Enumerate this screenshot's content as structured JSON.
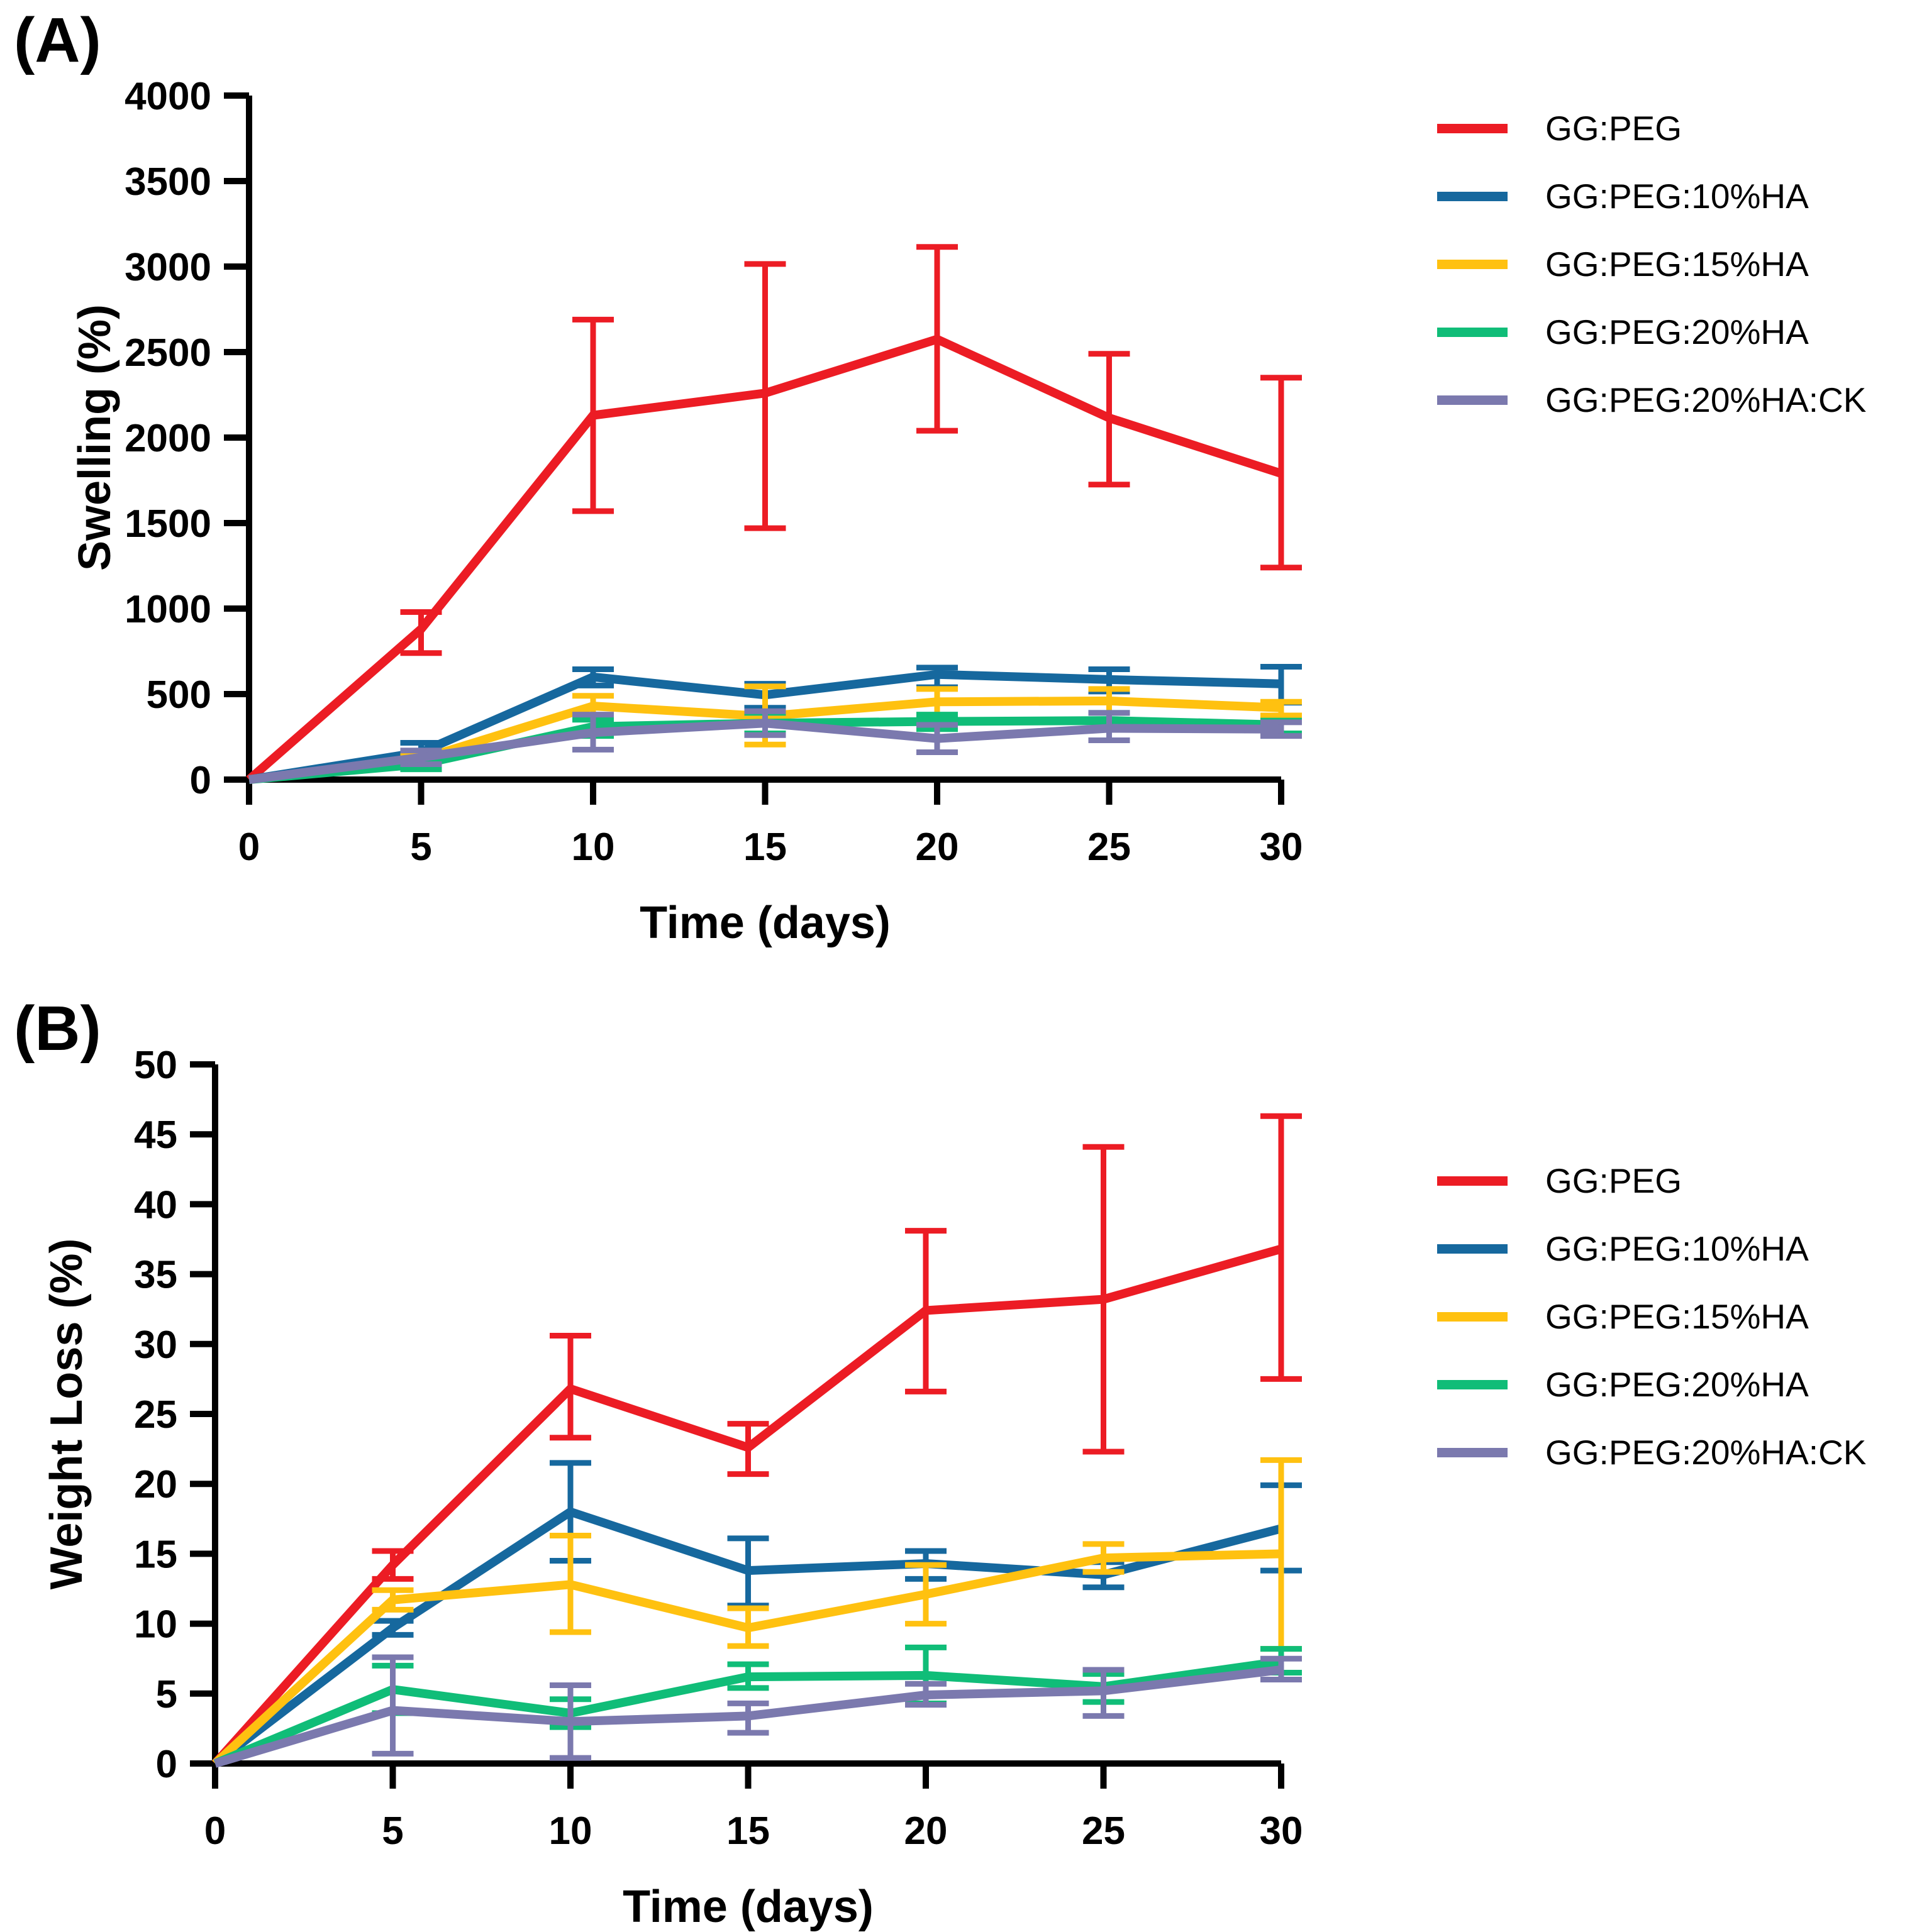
{
  "panels": [
    {
      "label": "(A)",
      "chart_data": {
        "type": "line",
        "x": [
          0,
          5,
          10,
          15,
          20,
          25,
          30
        ],
        "xlabel": "Time (days)",
        "ylabel": "Swelling (%)",
        "ylim": [
          0,
          4000
        ],
        "ytick_step": 500,
        "grid": "off",
        "legend_position": "right",
        "series": [
          {
            "name": "GG:PEG",
            "color": "#ec1c24",
            "values": [
              0,
              880,
              2130,
              2260,
              2575,
              2115,
              1790
            ],
            "err_low": [
              0,
              740,
              1570,
              1470,
              2040,
              1725,
              1240
            ],
            "err_high": [
              0,
              980,
              2690,
              3015,
              3115,
              2490,
              2350
            ]
          },
          {
            "name": "GG:PEG:10%HA",
            "color": "#16689e",
            "values": [
              0,
              160,
              600,
              495,
              615,
              585,
              560
            ],
            "err_low": [
              0,
              105,
              550,
              420,
              540,
              515,
              450
            ],
            "err_high": [
              0,
              215,
              645,
              560,
              655,
              645,
              660
            ]
          },
          {
            "name": "GG:PEG:15%HA",
            "color": "#ffc110",
            "values": [
              0,
              120,
              430,
              370,
              455,
              460,
              420
            ],
            "err_low": [
              0,
              95,
              365,
              205,
              345,
              350,
              375
            ],
            "err_high": [
              0,
              150,
              490,
              545,
              530,
              530,
              455
            ]
          },
          {
            "name": "GG:PEG:20%HA",
            "color": "#10bd78",
            "values": [
              0,
              90,
              310,
              330,
              340,
              345,
              320
            ],
            "err_low": [
              0,
              60,
              255,
              270,
              295,
              300,
              270
            ],
            "err_high": [
              0,
              120,
              350,
              390,
              380,
              390,
              345
            ]
          },
          {
            "name": "GG:PEG:20%HA:CK",
            "color": "#7b79ae",
            "values": [
              0,
              130,
              275,
              330,
              240,
              300,
              295
            ],
            "err_low": [
              0,
              90,
              175,
              260,
              160,
              230,
              255
            ],
            "err_high": [
              0,
              170,
              380,
              400,
              320,
              390,
              335
            ]
          }
        ]
      }
    },
    {
      "label": "(B)",
      "chart_data": {
        "type": "line",
        "x": [
          0,
          5,
          10,
          15,
          20,
          25,
          30
        ],
        "xlabel": "Time (days)",
        "ylabel": "Weight Loss (%)",
        "ylim": [
          0,
          50
        ],
        "ytick_step": 5,
        "grid": "off",
        "legend_position": "right",
        "series": [
          {
            "name": "GG:PEG",
            "color": "#ec1c24",
            "values": [
              0,
              14.2,
              26.8,
              22.6,
              32.4,
              33.2,
              36.8
            ],
            "err_low": [
              0,
              13.2,
              23.3,
              20.7,
              26.6,
              22.3,
              27.5
            ],
            "err_high": [
              0,
              15.2,
              30.6,
              24.3,
              38.1,
              44.1,
              46.3
            ]
          },
          {
            "name": "GG:PEG:10%HA",
            "color": "#16689e",
            "values": [
              0,
              9.7,
              18.0,
              13.8,
              14.3,
              13.5,
              16.8
            ],
            "err_low": [
              0,
              9.2,
              14.5,
              11.3,
              13.2,
              12.6,
              13.8
            ],
            "err_high": [
              0,
              10.2,
              21.5,
              16.1,
              15.2,
              14.4,
              19.9
            ]
          },
          {
            "name": "GG:PEG:15%HA",
            "color": "#ffc110",
            "values": [
              0,
              11.7,
              12.8,
              9.7,
              12.1,
              14.7,
              15.0
            ],
            "err_low": [
              0,
              11.0,
              9.4,
              8.4,
              10.0,
              13.7,
              8.2
            ],
            "err_high": [
              0,
              12.4,
              16.3,
              11.1,
              14.2,
              15.7,
              21.7
            ]
          },
          {
            "name": "GG:PEG:20%HA",
            "color": "#10bd78",
            "values": [
              0,
              5.3,
              3.6,
              6.2,
              6.3,
              5.5,
              7.3
            ],
            "err_low": [
              0,
              3.6,
              2.6,
              5.4,
              4.3,
              4.4,
              6.5
            ],
            "err_high": [
              0,
              7.0,
              4.6,
              7.1,
              8.3,
              6.4,
              8.2
            ]
          },
          {
            "name": "GG:PEG:20%HA:CK",
            "color": "#7b79ae",
            "values": [
              0,
              3.8,
              3.0,
              3.4,
              4.9,
              5.2,
              6.7
            ],
            "err_low": [
              0,
              0.7,
              0.4,
              2.2,
              4.2,
              3.4,
              6.0
            ],
            "err_high": [
              0,
              7.6,
              5.6,
              4.3,
              5.7,
              6.7,
              7.5
            ]
          }
        ]
      }
    }
  ]
}
